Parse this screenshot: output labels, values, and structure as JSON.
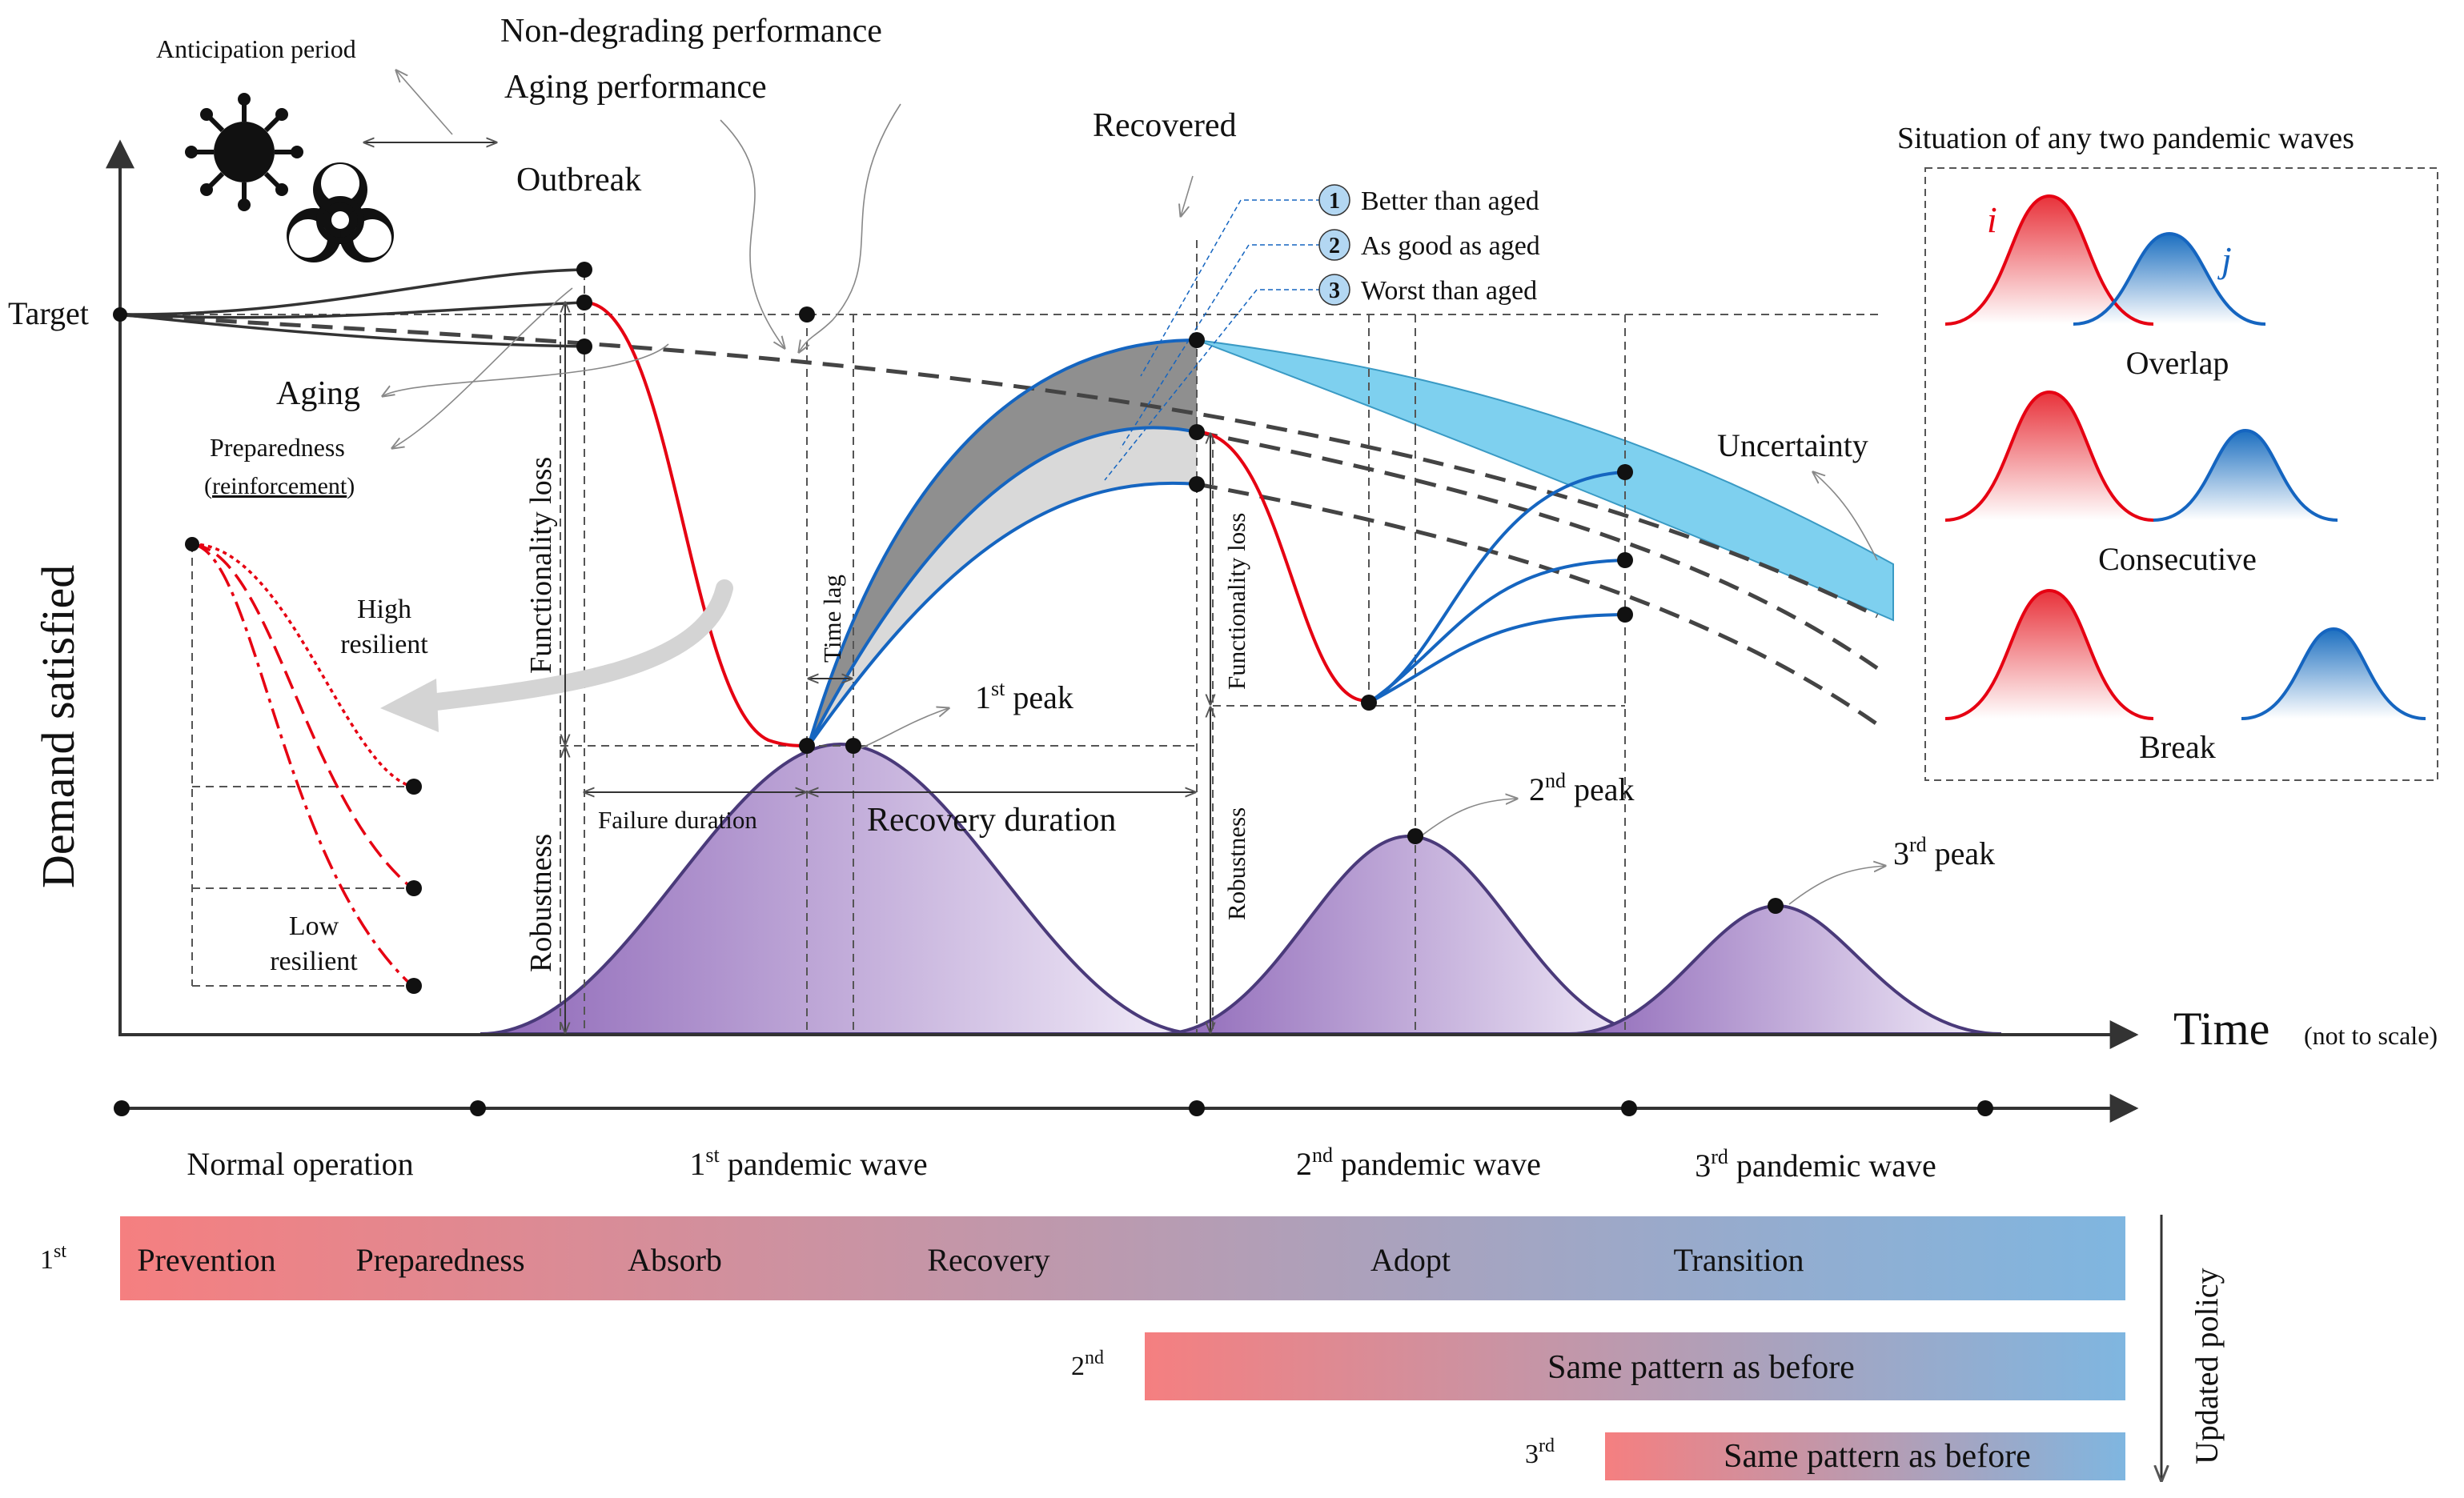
{
  "top": {
    "anticipation": "Anticipation period",
    "non_degrading": "Non-degrading performance",
    "aging_performance": "Aging performance",
    "outbreak": "Outbreak",
    "recovered": "Recovered",
    "target": "Target",
    "aging": "Aging",
    "preparedness": "Preparedness",
    "reinforcement": "reinforcement",
    "paren_open": "(",
    "paren_close": ")"
  },
  "axes": {
    "y_label": "Demand satisfied",
    "x_label": "Time",
    "x_note": "(not to scale)"
  },
  "legend": {
    "items": [
      {
        "num": "1",
        "label": "Better than aged"
      },
      {
        "num": "2",
        "label": "As good as aged"
      },
      {
        "num": "3",
        "label": "Worst than aged"
      }
    ]
  },
  "annotations": {
    "functionality_loss": "Functionality loss",
    "functionality_loss_2": "Functionality loss",
    "robustness": "Robustness",
    "robustness_2": "Robustness",
    "time_lag": "Time lag",
    "failure_duration": "Failure duration",
    "recovery_duration": "Recovery duration",
    "uncertainty": "Uncertainty",
    "high_resilient": [
      "High",
      "resilient"
    ],
    "low_resilient": [
      "Low",
      "resilient"
    ]
  },
  "peaks": [
    {
      "num": "1",
      "sup": "st",
      "label": " peak"
    },
    {
      "num": "2",
      "sup": "nd",
      "label": " peak"
    },
    {
      "num": "3",
      "sup": "rd",
      "label": " peak"
    }
  ],
  "situation": {
    "title": "Situation of any two pandemic waves",
    "i": "i",
    "j": "j",
    "overlap": "Overlap",
    "consecutive": "Consecutive",
    "break": "Break"
  },
  "timeline": {
    "normal": "Normal operation",
    "waves": [
      {
        "num": "1",
        "sup": "st",
        "label": " pandemic wave"
      },
      {
        "num": "2",
        "sup": "nd",
        "label": " pandemic wave"
      },
      {
        "num": "3",
        "sup": "rd",
        "label": " pandemic wave"
      }
    ]
  },
  "policy": {
    "row1_num": "1",
    "row1_sup": "st",
    "stages": [
      "Prevention",
      "Preparedness",
      "Absorb",
      "Recovery",
      "Adopt",
      "Transition"
    ],
    "row2_num": "2",
    "row2_sup": "nd",
    "row2_label": "Same pattern as before",
    "row3_num": "3",
    "row3_sup": "rd",
    "row3_label": "Same pattern as before",
    "updated": "Updated policy"
  },
  "colors": {
    "red": "#e60012",
    "blue": "#1565c0",
    "purple": "#8e67b8",
    "bar_start": "#f57f80",
    "bar_end": "#7fb6e0",
    "uncertainty": "#7ed0ef",
    "grey_dark": "#8f8f8f",
    "grey_light": "#d9d9d9"
  }
}
